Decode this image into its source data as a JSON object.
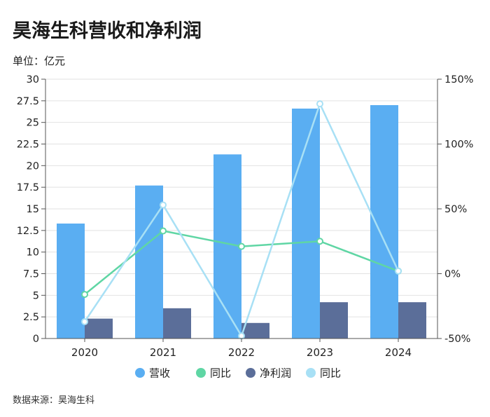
{
  "page": {
    "title": "昊海生科营收和净利润",
    "unit": "单位：亿元",
    "source": "数据来源：昊海生科"
  },
  "chart_data": {
    "type": "bar",
    "categories": [
      "2020",
      "2021",
      "2022",
      "2023",
      "2024"
    ],
    "series": [
      {
        "name": "营收",
        "type": "bar",
        "axis": "left",
        "color": "#5aaef2",
        "values": [
          13.3,
          17.7,
          21.3,
          26.6,
          27.0
        ]
      },
      {
        "name": "同比",
        "type": "line",
        "axis": "right",
        "color": "#5fd6a4",
        "values": [
          -16,
          33,
          21,
          25,
          2
        ]
      },
      {
        "name": "净利润",
        "type": "bar",
        "axis": "left",
        "color": "#5b6e99",
        "values": [
          2.3,
          3.5,
          1.8,
          4.2,
          4.2
        ]
      },
      {
        "name": "同比",
        "type": "line",
        "axis": "right",
        "color": "#a8e0f5",
        "values": [
          -37,
          53,
          -48,
          131,
          2
        ]
      }
    ],
    "y_left": {
      "min": 0,
      "max": 30,
      "ticks": [
        "0",
        "2.5",
        "5",
        "7.5",
        "10",
        "12.5",
        "15",
        "17.5",
        "20",
        "22.5",
        "25",
        "27.5",
        "30"
      ]
    },
    "y_right": {
      "min": -50,
      "max": 150,
      "ticks": [
        "-50%",
        "0%",
        "50%",
        "100%",
        "150%"
      ]
    },
    "grid": true,
    "legend_position": "bottom"
  }
}
